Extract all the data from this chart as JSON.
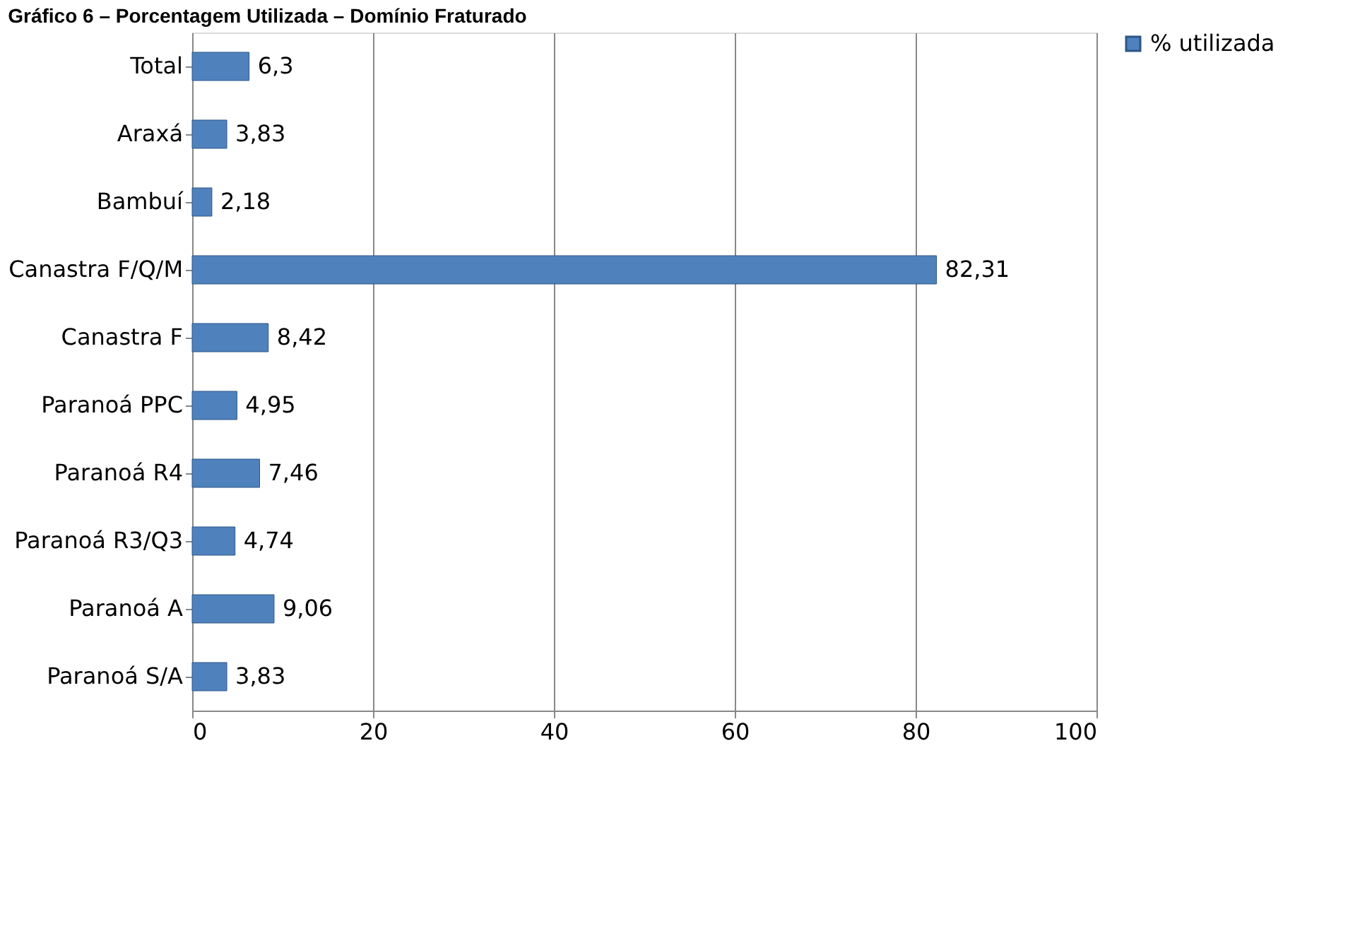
{
  "chart_data": {
    "type": "bar",
    "orientation": "horizontal",
    "title": "Gráfico 6 – Porcentagem Utilizada – Domínio Fraturado",
    "categories": [
      "Total",
      "Araxá",
      "Bambuí",
      "Canastra F/Q/M",
      "Canastra F",
      "Paranoá PPC",
      "Paranoá R4",
      "Paranoá R3/Q3",
      "Paranoá A",
      "Paranoá S/A"
    ],
    "series": [
      {
        "name": "% utilizada",
        "color": "#4f81bd",
        "values": [
          6.3,
          3.83,
          2.18,
          82.31,
          8.42,
          4.95,
          7.46,
          4.74,
          9.06,
          3.83
        ]
      }
    ],
    "value_labels": [
      "6,3",
      "3,83",
      "2,18",
      "82,31",
      "8,42",
      "4,95",
      "7,46",
      "4,74",
      "9,06",
      "3,83"
    ],
    "xlim": [
      0,
      100
    ],
    "xticks": [
      0,
      20,
      40,
      60,
      80,
      100
    ],
    "grid": "x",
    "legend": "right"
  }
}
